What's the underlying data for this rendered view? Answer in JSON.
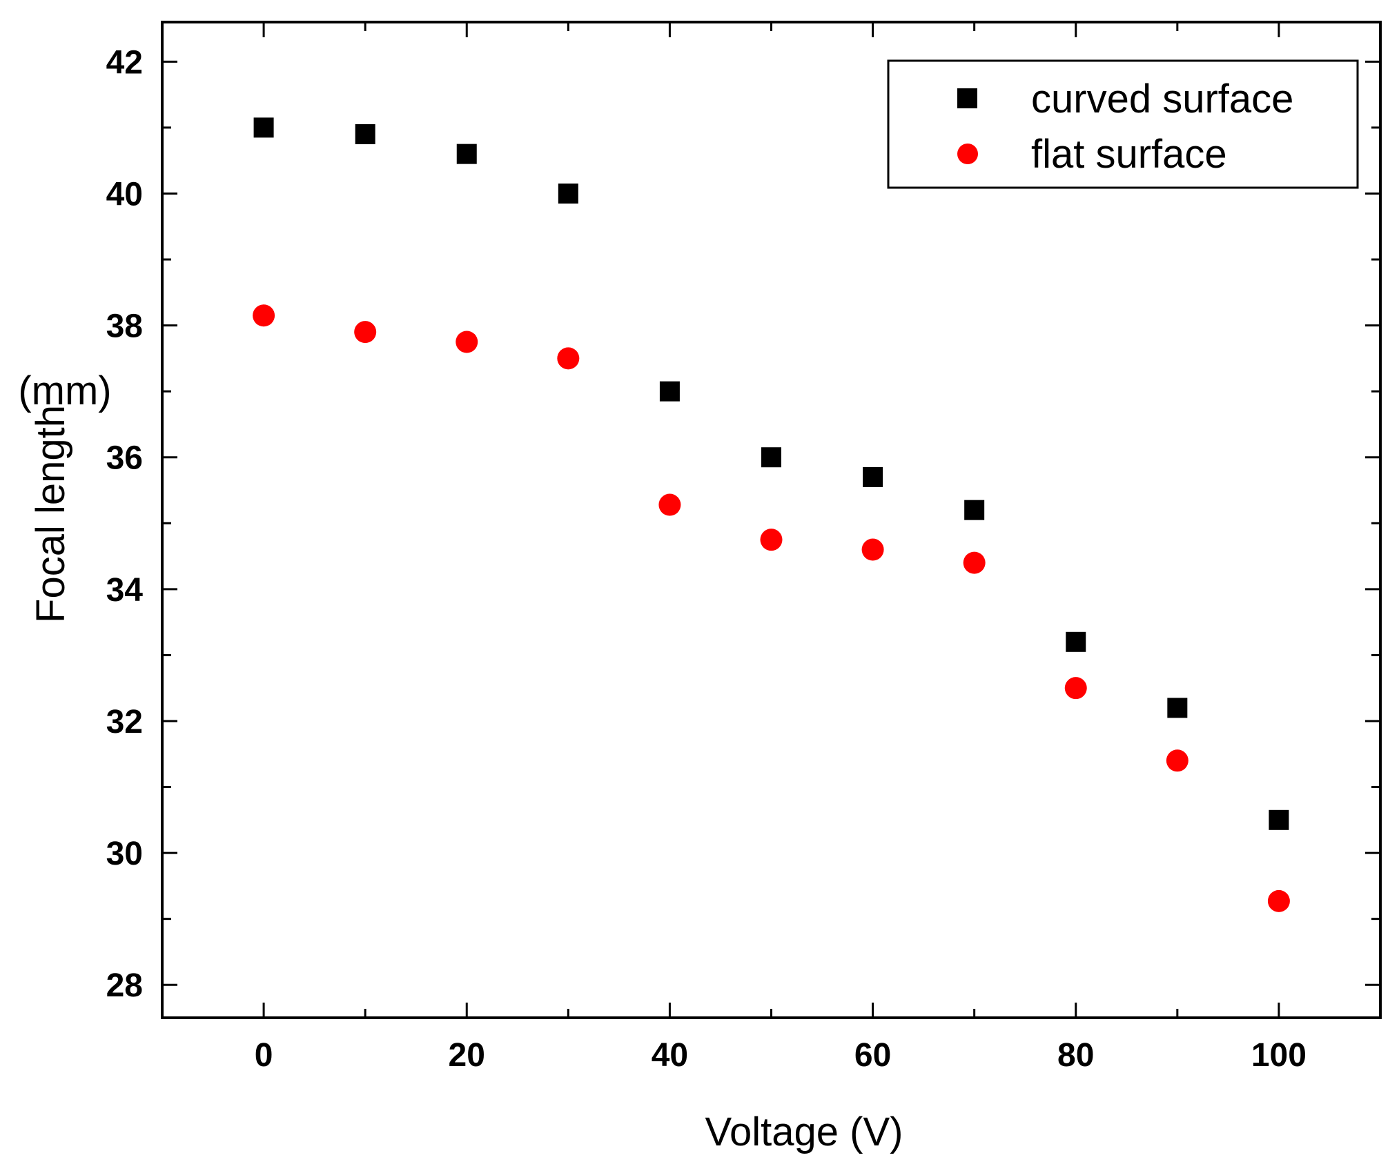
{
  "chart_data": {
    "type": "scatter",
    "title": "",
    "xlabel": "Voltage (V)",
    "ylabel_main": "Focal length",
    "ylabel_unit": "(mm)",
    "xlim": [
      -10,
      110
    ],
    "ylim": [
      27.5,
      42.6
    ],
    "x_ticks": [
      0,
      20,
      40,
      60,
      80,
      100
    ],
    "y_ticks": [
      28,
      30,
      32,
      34,
      36,
      38,
      40,
      42
    ],
    "x_minor_step": 10,
    "y_minor_step": 1,
    "grid": false,
    "legend_position": "top-right",
    "x": [
      0,
      10,
      20,
      30,
      40,
      50,
      60,
      70,
      80,
      90,
      100
    ],
    "series": [
      {
        "name": "curved surface",
        "marker": "square",
        "color": "#000000",
        "values": [
          41.0,
          40.9,
          40.6,
          40.0,
          37.0,
          36.0,
          35.7,
          35.2,
          33.2,
          32.2,
          30.5
        ]
      },
      {
        "name": "flat surface",
        "marker": "circle",
        "color": "#ff0000",
        "values": [
          38.15,
          37.9,
          37.75,
          37.5,
          35.28,
          34.75,
          34.6,
          34.4,
          32.5,
          31.4,
          29.27
        ]
      }
    ]
  }
}
